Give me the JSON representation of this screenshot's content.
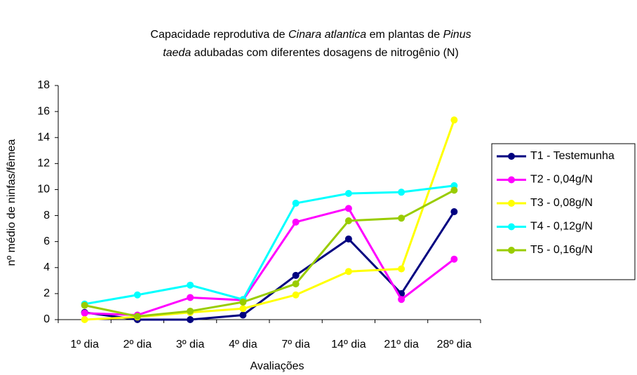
{
  "chart_data": {
    "type": "line",
    "title": [
      [
        {
          "text": "Capacidade reprodutiva de ",
          "italic": false
        },
        {
          "text": "Cinara atlantica",
          "italic": true
        },
        {
          "text": " em plantas de ",
          "italic": false
        },
        {
          "text": "Pinus",
          "italic": true
        }
      ],
      [
        {
          "text": "taeda",
          "italic": true
        },
        {
          "text": " adubadas com diferentes dosagens de nitrogênio (N)",
          "italic": false
        }
      ]
    ],
    "xlabel": "Avaliações",
    "ylabel": "nº médio de ninfas/fêmea",
    "categories": [
      "1º dia",
      "2º dia",
      "3º dia",
      "4º dia",
      "7º dia",
      "14º dia",
      "21º dia",
      "28º dia"
    ],
    "series": [
      {
        "name": "T1 - Testemunha",
        "color": "#000080",
        "values": [
          0.55,
          0.0,
          0.0,
          0.35,
          3.4,
          6.2,
          2.0,
          8.3
        ]
      },
      {
        "name": "T2 - 0,04g/N",
        "color": "#ff00ff",
        "values": [
          0.5,
          0.35,
          1.7,
          1.5,
          7.5,
          8.55,
          1.55,
          4.65
        ]
      },
      {
        "name": "T3 - 0,08g/N",
        "color": "#ffff00",
        "values": [
          0.0,
          0.2,
          0.55,
          0.85,
          1.9,
          3.7,
          3.9,
          15.35
        ]
      },
      {
        "name": "T4 - 0,12g/N",
        "color": "#00ffff",
        "values": [
          1.2,
          1.9,
          2.65,
          1.55,
          8.95,
          9.7,
          9.8,
          10.3
        ]
      },
      {
        "name": "T5 - 0,16g/N",
        "color": "#99cc00",
        "values": [
          1.1,
          0.25,
          0.65,
          1.35,
          2.75,
          7.6,
          7.8,
          9.95
        ]
      }
    ],
    "ylim": [
      0,
      18
    ],
    "yticks": [
      0,
      2,
      4,
      6,
      8,
      10,
      12,
      14,
      16,
      18
    ],
    "grid": false,
    "legend": "right"
  }
}
